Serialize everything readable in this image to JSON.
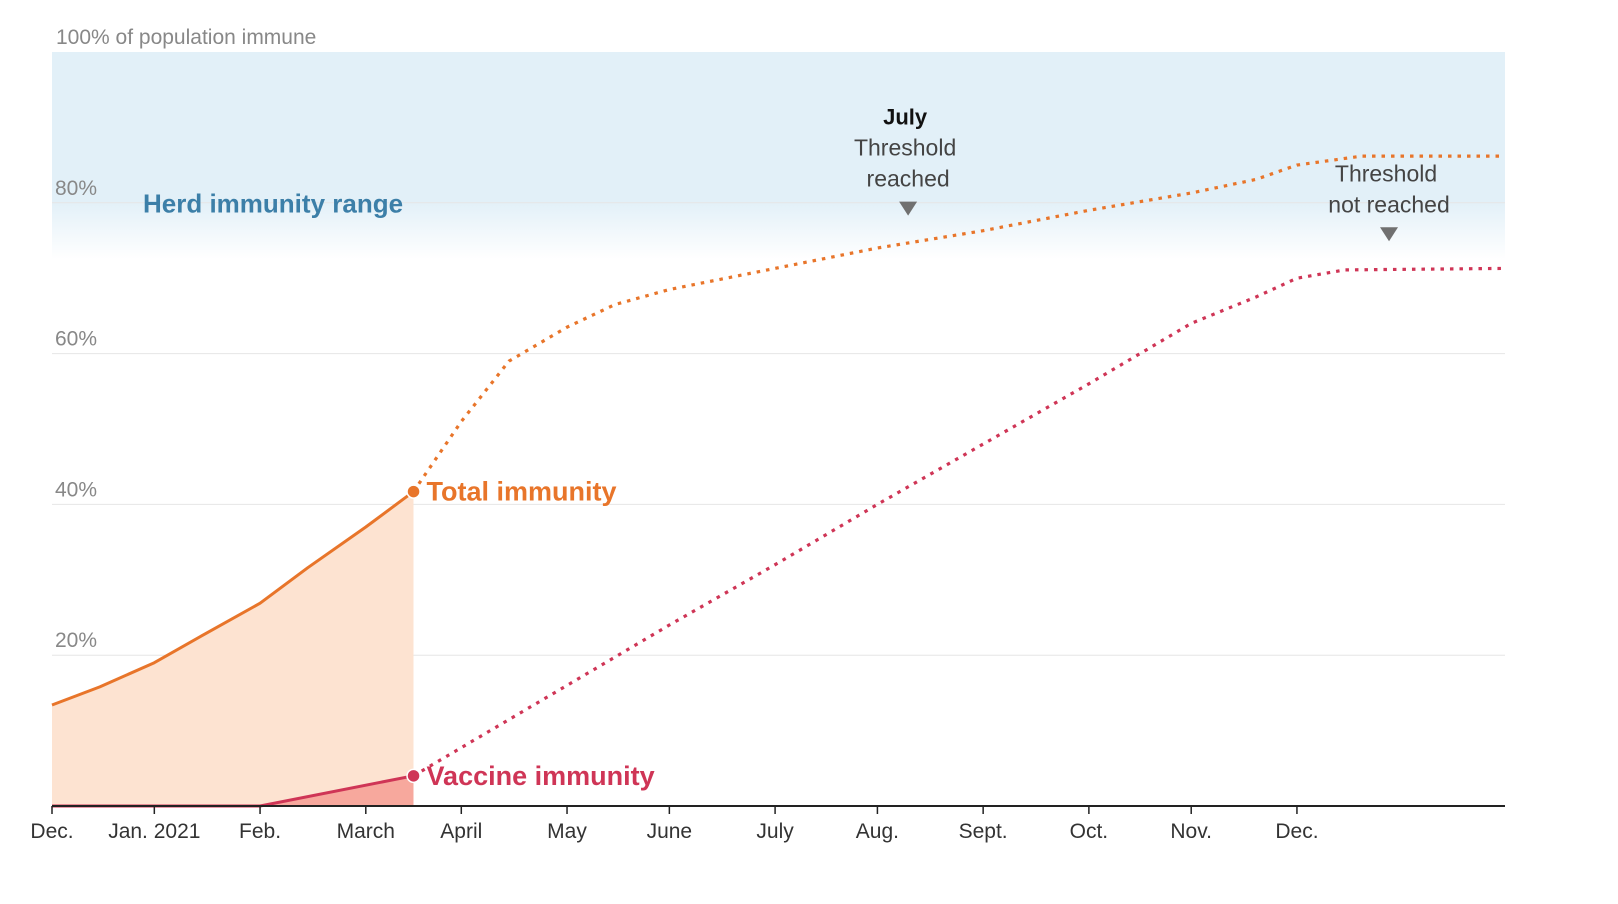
{
  "chart_data": {
    "type": "area",
    "y_axis_title": "100% of population immune",
    "ylim": [
      0,
      100
    ],
    "y_ticks": [
      "20%",
      "40%",
      "60%",
      "80%"
    ],
    "x_tick_labels": [
      "Dec.",
      "Jan. 2021",
      "Feb.",
      "March",
      "April",
      "May",
      "June",
      "July",
      "Aug.",
      "Sept.",
      "Oct.",
      "Nov.",
      "Dec."
    ],
    "herd_immunity_range": {
      "label": "Herd immunity range",
      "lower": 75,
      "upper": 100
    },
    "grid": true,
    "colors": {
      "total": "#e8752a",
      "total_fill": "#fde3d1",
      "vaccine": "#cf3556",
      "vaccine_fill": "#f7a89d",
      "herd_band": "#e2f0f8",
      "herd_label": "#3c7fa8"
    },
    "series": [
      {
        "name": "Total immunity",
        "observed": [
          [
            "2020-11-01",
            13.4
          ],
          [
            "2020-11-15",
            15.8
          ],
          [
            "2020-12-01",
            19
          ],
          [
            "2020-12-15",
            22.6
          ],
          [
            "2021-01-01",
            26.9
          ],
          [
            "2021-01-15",
            31.6
          ],
          [
            "2021-02-01",
            37
          ],
          [
            "2021-02-15",
            41.7
          ]
        ],
        "projected": [
          [
            "2021-02-15",
            41.7
          ],
          [
            "2021-03-01",
            51
          ],
          [
            "2021-03-15",
            59
          ],
          [
            "2021-04-01",
            63.5
          ],
          [
            "2021-04-15",
            66.5
          ],
          [
            "2021-05-01",
            68.5
          ],
          [
            "2021-06-01",
            71.3
          ],
          [
            "2021-07-01",
            74
          ],
          [
            "2021-08-01",
            76.3
          ],
          [
            "2021-09-01",
            79
          ],
          [
            "2021-10-01",
            81.3
          ],
          [
            "2021-10-20",
            83.1
          ],
          [
            "2021-11-01",
            85
          ],
          [
            "2021-11-20",
            86.2
          ],
          [
            "2022-01-01",
            86.2
          ]
        ]
      },
      {
        "name": "Vaccine immunity",
        "observed": [
          [
            "2020-11-01",
            0
          ],
          [
            "2021-01-01",
            0
          ],
          [
            "2021-02-15",
            4
          ]
        ],
        "projected": [
          [
            "2021-02-15",
            4
          ],
          [
            "2021-04-01",
            16
          ],
          [
            "2021-05-01",
            24
          ],
          [
            "2021-06-01",
            32
          ],
          [
            "2021-07-01",
            40
          ],
          [
            "2021-08-01",
            48
          ],
          [
            "2021-09-01",
            56
          ],
          [
            "2021-10-01",
            64
          ],
          [
            "2021-10-20",
            67.5
          ],
          [
            "2021-11-01",
            70
          ],
          [
            "2021-11-15",
            71.1
          ],
          [
            "2022-01-01",
            71.3
          ]
        ]
      }
    ],
    "annotations": [
      {
        "id": "july",
        "title": "July",
        "lines": [
          "Threshold",
          "reached"
        ],
        "date": "2021-07-10",
        "marker_value": 78.3
      },
      {
        "id": "not-reached",
        "title": "",
        "lines": [
          "Threshold",
          "not reached"
        ],
        "date": "2021-11-28",
        "marker_value": 74.9
      }
    ]
  }
}
